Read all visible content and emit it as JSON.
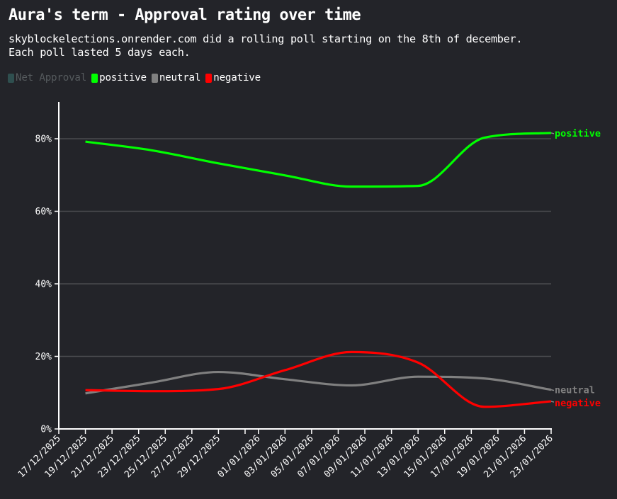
{
  "header": {
    "title": "Aura's term - Approval rating over time",
    "subtitle_line1": "skyblockelections.onrender.com did a rolling poll starting on the 8th of december.",
    "subtitle_line2": "Each poll lasted 5 days each."
  },
  "legend": [
    {
      "label": "Net Approval",
      "color": "#2f4f4f",
      "enabled": false
    },
    {
      "label": "positive",
      "color": "#00ff00",
      "enabled": true
    },
    {
      "label": "neutral",
      "color": "#808080",
      "enabled": true
    },
    {
      "label": "negative",
      "color": "#ff0000",
      "enabled": true
    }
  ],
  "chart_data": {
    "type": "line",
    "title": "Aura's term - Approval rating over time",
    "subtitle": "skyblockelections.onrender.com did a rolling poll starting on the 8th of december. Each poll lasted 5 days each.",
    "xlabel": "",
    "ylabel": "",
    "ylim": [
      0,
      90
    ],
    "y_ticks": [
      "0%",
      "20%",
      "40%",
      "60%",
      "80%"
    ],
    "x_tick_labels": [
      "17/12/2025",
      "19/12/2025",
      "21/12/2025",
      "23/12/2025",
      "25/12/2025",
      "27/12/2025",
      "29/12/2025",
      "01/01/2026",
      "03/01/2026",
      "05/01/2026",
      "07/01/2026",
      "09/01/2026",
      "11/01/2026",
      "13/01/2026",
      "15/01/2026",
      "17/01/2026",
      "19/01/2026",
      "21/01/2026",
      "23/01/2026"
    ],
    "grid": "horizontal",
    "legend_position": "top-left",
    "x": [
      "19/12/2025",
      "24/12/2025",
      "29/12/2025",
      "03/01/2026",
      "08/01/2026",
      "13/01/2026",
      "18/01/2026",
      "23/01/2026"
    ],
    "series": [
      {
        "name": "positive",
        "color": "#00ff00",
        "values": [
          79.2,
          76.8,
          73.2,
          69.9,
          66.8,
          67.0,
          80.3,
          81.6
        ]
      },
      {
        "name": "neutral",
        "color": "#808080",
        "values": [
          9.8,
          12.8,
          15.7,
          13.7,
          12.0,
          14.4,
          13.9,
          10.8
        ]
      },
      {
        "name": "negative",
        "color": "#ff0000",
        "values": [
          10.7,
          10.4,
          11.0,
          16.2,
          21.2,
          18.3,
          6.1,
          7.6
        ]
      },
      {
        "name": "Net Approval",
        "color": "#2f4f4f",
        "hidden": true,
        "values": []
      }
    ],
    "end_labels": [
      "positive",
      "neutral",
      "negative"
    ]
  }
}
